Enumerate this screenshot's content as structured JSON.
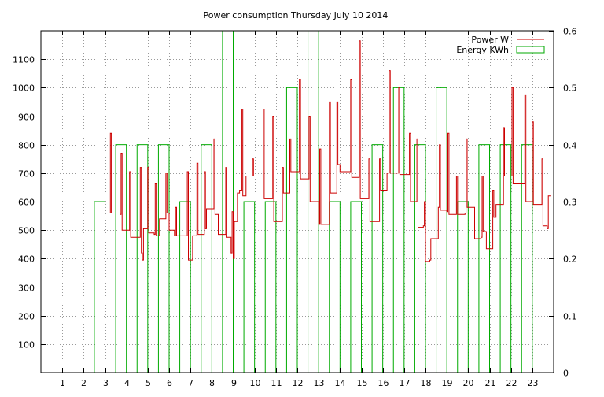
{
  "chart_data": {
    "type": "line",
    "title": "Power consumption Thursday July 10 2014",
    "xlabel": "",
    "ylabel": "",
    "y2label": "",
    "xlim": [
      0,
      24
    ],
    "ylim": [
      0,
      1200
    ],
    "y2lim": [
      0,
      0.6
    ],
    "xticks": [
      1,
      2,
      3,
      4,
      5,
      6,
      7,
      8,
      9,
      10,
      11,
      12,
      13,
      14,
      15,
      16,
      17,
      18,
      19,
      20,
      21,
      22,
      23
    ],
    "yticks": [
      100,
      200,
      300,
      400,
      500,
      600,
      700,
      800,
      900,
      1000,
      1100
    ],
    "y2ticks": [
      0,
      0.1,
      0.2,
      0.3,
      0.4,
      0.5,
      0.6
    ],
    "grid": true,
    "legend_position": "top-right",
    "series": [
      {
        "name": "Power W",
        "axis": "left",
        "color": "#cc0000",
        "style": "steps",
        "points": [
          [
            3.2,
            560
          ],
          [
            3.25,
            840
          ],
          [
            3.3,
            560
          ],
          [
            3.7,
            555
          ],
          [
            3.75,
            770
          ],
          [
            3.8,
            500
          ],
          [
            4.1,
            500
          ],
          [
            4.15,
            705
          ],
          [
            4.2,
            475
          ],
          [
            4.6,
            475
          ],
          [
            4.65,
            720
          ],
          [
            4.7,
            420
          ],
          [
            4.75,
            395
          ],
          [
            4.8,
            505
          ],
          [
            4.95,
            505
          ],
          [
            5.0,
            720
          ],
          [
            5.05,
            490
          ],
          [
            5.3,
            485
          ],
          [
            5.35,
            665
          ],
          [
            5.4,
            480
          ],
          [
            5.5,
            480
          ],
          [
            5.55,
            540
          ],
          [
            5.8,
            540
          ],
          [
            5.85,
            700
          ],
          [
            5.9,
            560
          ],
          [
            5.95,
            560
          ],
          [
            6.0,
            500
          ],
          [
            6.25,
            480
          ],
          [
            6.3,
            580
          ],
          [
            6.35,
            480
          ],
          [
            6.8,
            480
          ],
          [
            6.85,
            705
          ],
          [
            6.9,
            395
          ],
          [
            7.05,
            395
          ],
          [
            7.1,
            480
          ],
          [
            7.25,
            480
          ],
          [
            7.3,
            735
          ],
          [
            7.35,
            485
          ],
          [
            7.6,
            485
          ],
          [
            7.65,
            705
          ],
          [
            7.7,
            505
          ],
          [
            7.75,
            575
          ],
          [
            8.05,
            575
          ],
          [
            8.1,
            820
          ],
          [
            8.15,
            555
          ],
          [
            8.3,
            485
          ],
          [
            8.6,
            485
          ],
          [
            8.65,
            720
          ],
          [
            8.7,
            475
          ],
          [
            8.85,
            475
          ],
          [
            8.9,
            420
          ],
          [
            8.95,
            565
          ],
          [
            9.0,
            400
          ],
          [
            9.05,
            530
          ],
          [
            9.15,
            530
          ],
          [
            9.2,
            630
          ],
          [
            9.3,
            640
          ],
          [
            9.4,
            925
          ],
          [
            9.45,
            620
          ],
          [
            9.55,
            620
          ],
          [
            9.6,
            690
          ],
          [
            9.85,
            690
          ],
          [
            9.9,
            750
          ],
          [
            9.95,
            690
          ],
          [
            10.35,
            690
          ],
          [
            10.4,
            925
          ],
          [
            10.45,
            610
          ],
          [
            10.8,
            610
          ],
          [
            10.85,
            900
          ],
          [
            10.9,
            530
          ],
          [
            11.25,
            530
          ],
          [
            11.3,
            720
          ],
          [
            11.35,
            630
          ],
          [
            11.6,
            630
          ],
          [
            11.65,
            820
          ],
          [
            11.7,
            705
          ],
          [
            12.05,
            705
          ],
          [
            12.1,
            1030
          ],
          [
            12.15,
            680
          ],
          [
            12.5,
            680
          ],
          [
            12.55,
            900
          ],
          [
            12.6,
            600
          ],
          [
            12.95,
            600
          ],
          [
            13.0,
            520
          ],
          [
            13.05,
            785
          ],
          [
            13.1,
            520
          ],
          [
            13.45,
            520
          ],
          [
            13.5,
            950
          ],
          [
            13.55,
            630
          ],
          [
            13.8,
            630
          ],
          [
            13.85,
            950
          ],
          [
            13.9,
            730
          ],
          [
            14.0,
            705
          ],
          [
            14.45,
            705
          ],
          [
            14.5,
            1030
          ],
          [
            14.55,
            685
          ],
          [
            14.85,
            685
          ],
          [
            14.9,
            1165
          ],
          [
            14.95,
            610
          ],
          [
            15.3,
            610
          ],
          [
            15.35,
            750
          ],
          [
            15.4,
            530
          ],
          [
            15.8,
            530
          ],
          [
            15.85,
            750
          ],
          [
            15.9,
            640
          ],
          [
            16.15,
            640
          ],
          [
            16.2,
            700
          ],
          [
            16.3,
            1060
          ],
          [
            16.35,
            700
          ],
          [
            16.7,
            700
          ],
          [
            16.75,
            1000
          ],
          [
            16.8,
            695
          ],
          [
            17.2,
            695
          ],
          [
            17.25,
            840
          ],
          [
            17.3,
            600
          ],
          [
            17.55,
            600
          ],
          [
            17.6,
            820
          ],
          [
            17.65,
            510
          ],
          [
            17.9,
            515
          ],
          [
            17.95,
            600
          ],
          [
            18.0,
            390
          ],
          [
            18.2,
            395
          ],
          [
            18.25,
            470
          ],
          [
            18.6,
            580
          ],
          [
            18.65,
            800
          ],
          [
            18.7,
            570
          ],
          [
            19.0,
            565
          ],
          [
            19.05,
            840
          ],
          [
            19.1,
            555
          ],
          [
            19.4,
            555
          ],
          [
            19.45,
            690
          ],
          [
            19.5,
            555
          ],
          [
            19.85,
            560
          ],
          [
            19.9,
            820
          ],
          [
            19.95,
            580
          ],
          [
            20.3,
            470
          ],
          [
            20.6,
            475
          ],
          [
            20.65,
            690
          ],
          [
            20.7,
            495
          ],
          [
            20.85,
            435
          ],
          [
            21.1,
            435
          ],
          [
            21.15,
            640
          ],
          [
            21.2,
            545
          ],
          [
            21.3,
            590
          ],
          [
            21.6,
            590
          ],
          [
            21.65,
            860
          ],
          [
            21.7,
            690
          ],
          [
            22.0,
            690
          ],
          [
            22.05,
            1000
          ],
          [
            22.1,
            665
          ],
          [
            22.6,
            665
          ],
          [
            22.65,
            975
          ],
          [
            22.7,
            600
          ],
          [
            22.95,
            600
          ],
          [
            23.0,
            880
          ],
          [
            23.05,
            590
          ],
          [
            23.4,
            590
          ],
          [
            23.45,
            750
          ],
          [
            23.5,
            515
          ],
          [
            23.7,
            505
          ],
          [
            23.75,
            620
          ],
          [
            23.85,
            620
          ]
        ]
      },
      {
        "name": "Energy KWh",
        "axis": "right",
        "color": "#00aa00",
        "style": "bars",
        "bar_width_hours": 0.5,
        "bars": [
          [
            3,
            0.3
          ],
          [
            4,
            0.4
          ],
          [
            5,
            0.4
          ],
          [
            6,
            0.4
          ],
          [
            7,
            0.3
          ],
          [
            8,
            0.4
          ],
          [
            9,
            0.6
          ],
          [
            10,
            0.3
          ],
          [
            11,
            0.3
          ],
          [
            12,
            0.5
          ],
          [
            13,
            0.6
          ],
          [
            14,
            0.3
          ],
          [
            15,
            0.3
          ],
          [
            16,
            0.4
          ],
          [
            17,
            0.5
          ],
          [
            18,
            0.4
          ],
          [
            19,
            0.5
          ],
          [
            20,
            0.3
          ],
          [
            21,
            0.4
          ],
          [
            22,
            0.4
          ],
          [
            23,
            0.4
          ]
        ]
      }
    ]
  }
}
